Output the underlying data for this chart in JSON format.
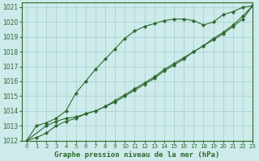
{
  "title": "Graphe pression niveau de la mer (hPa)",
  "bg_color": "#ceeaea",
  "grid_color": "#a8d4d4",
  "line_color": "#2d6a2d",
  "marker_color": "#2d6a2d",
  "xlim": [
    -0.5,
    23
  ],
  "ylim": [
    1012,
    1021.3
  ],
  "xticks": [
    0,
    1,
    2,
    3,
    4,
    5,
    6,
    7,
    8,
    9,
    10,
    11,
    12,
    13,
    14,
    15,
    16,
    17,
    18,
    19,
    20,
    21,
    22,
    23
  ],
  "yticks": [
    1012,
    1013,
    1014,
    1015,
    1016,
    1017,
    1018,
    1019,
    1020,
    1021
  ],
  "series1_x": [
    0,
    1,
    2,
    3,
    4,
    5,
    6,
    7,
    8,
    9,
    10,
    11,
    12,
    13,
    14,
    15,
    16,
    17,
    18,
    19,
    20,
    21,
    22,
    23
  ],
  "series1_y": [
    1012.0,
    1013.0,
    1013.2,
    1013.5,
    1014.0,
    1015.2,
    1016.0,
    1016.8,
    1017.5,
    1018.2,
    1018.9,
    1019.4,
    1019.7,
    1019.9,
    1020.1,
    1020.2,
    1020.2,
    1020.1,
    1019.8,
    1020.0,
    1020.5,
    1020.7,
    1021.0,
    1021.1
  ],
  "series2_x": [
    0,
    1,
    2,
    3,
    4,
    5,
    6,
    7,
    8,
    9,
    10,
    11,
    12,
    13,
    14,
    15,
    16,
    17,
    18,
    19,
    20,
    21,
    22,
    23
  ],
  "series2_y": [
    1012.0,
    1012.2,
    1012.5,
    1013.0,
    1013.3,
    1013.5,
    1013.8,
    1014.0,
    1014.3,
    1014.7,
    1015.1,
    1015.5,
    1015.9,
    1016.3,
    1016.8,
    1017.2,
    1017.6,
    1018.0,
    1018.4,
    1018.8,
    1019.2,
    1019.7,
    1020.2,
    1021.1
  ],
  "series3_x": [
    0,
    2,
    3,
    4,
    5,
    6,
    7,
    8,
    9,
    10,
    11,
    12,
    13,
    14,
    15,
    16,
    17,
    18,
    19,
    20,
    21,
    22,
    23
  ],
  "series3_y": [
    1012.0,
    1013.0,
    1013.3,
    1013.5,
    1013.6,
    1013.8,
    1014.0,
    1014.3,
    1014.6,
    1015.0,
    1015.4,
    1015.8,
    1016.2,
    1016.7,
    1017.1,
    1017.5,
    1018.0,
    1018.4,
    1018.9,
    1019.3,
    1019.8,
    1020.4,
    1021.1
  ],
  "ylabel_fontsize": 5.5,
  "xlabel_fontsize": 5.0,
  "title_fontsize": 6.5
}
